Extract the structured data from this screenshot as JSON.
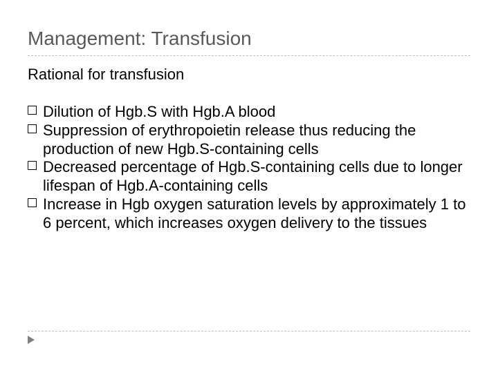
{
  "slide": {
    "title": "Management: Transfusion",
    "subtitle": "Rational for transfusion",
    "bullets": [
      "Dilution of Hgb.S with Hgb.A blood",
      "Suppression of erythropoietin release thus reducing the production of new Hgb.S-containing cells",
      "Decreased percentage of Hgb.S-containing cells due to longer lifespan of Hgb.A-containing cells",
      "Increase in Hgb oxygen saturation levels by approximately 1 to 6 percent, which increases oxygen delivery to the tissues"
    ],
    "colors": {
      "title_color": "#595959",
      "text_color": "#000000",
      "divider_color": "#bfbfbf",
      "arrow_color": "#808080",
      "background": "#ffffff"
    },
    "fonts": {
      "title_size_pt": 28,
      "subtitle_size_pt": 22,
      "body_size_pt": 22,
      "family": "Arial"
    }
  }
}
